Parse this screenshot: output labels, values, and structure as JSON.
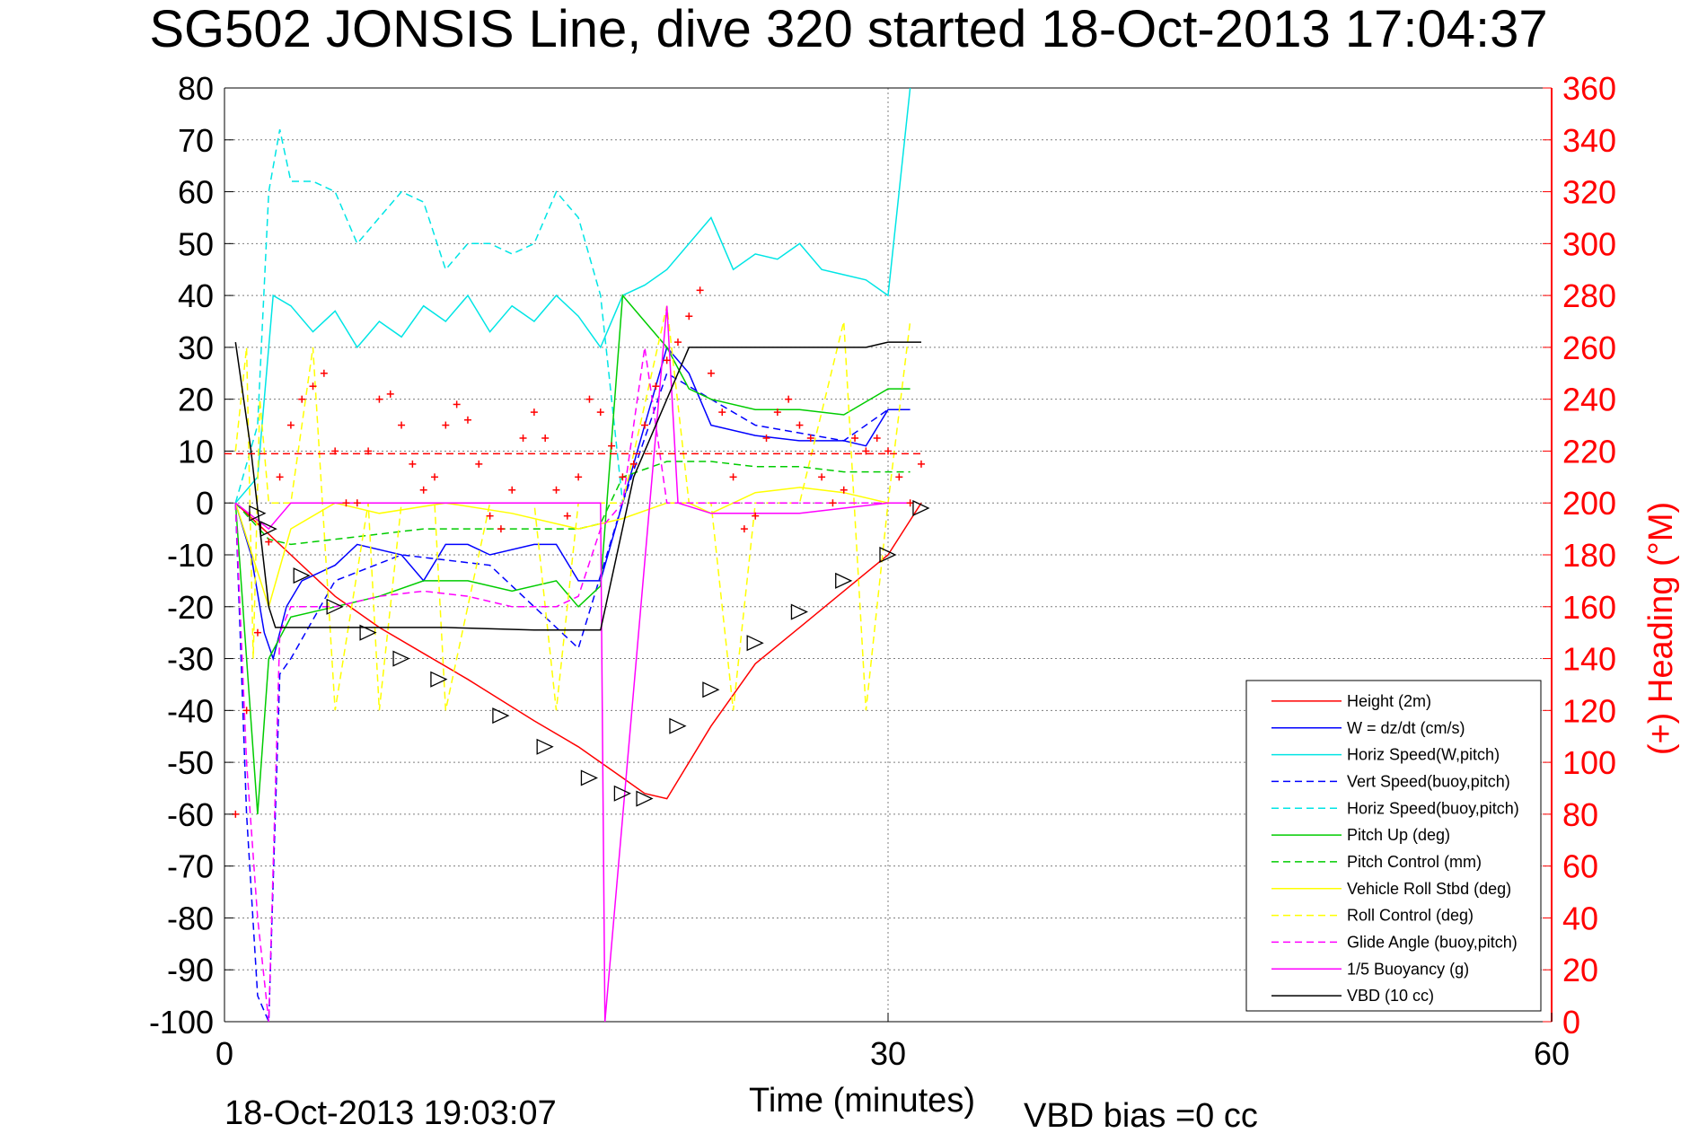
{
  "chart_data": {
    "type": "line",
    "title": "SG502 JONSIS Line, dive 320 started 18-Oct-2013 17:04:37",
    "xlabel": "Time (minutes)",
    "ylabel_right": "(+) Heading (°M)",
    "footer_left": "18-Oct-2013 19:03:07",
    "footer_right": "VBD bias =0 cc",
    "xlim": [
      0,
      60
    ],
    "ylim_left": [
      -100,
      80
    ],
    "ylim_right": [
      0,
      360
    ],
    "xticks": [
      0,
      30,
      60
    ],
    "yticks_left": [
      80,
      70,
      60,
      50,
      40,
      30,
      20,
      10,
      0,
      -10,
      -20,
      -30,
      -40,
      -50,
      -60,
      -70,
      -80,
      -90,
      -100
    ],
    "yticks_right": [
      360,
      340,
      320,
      300,
      280,
      260,
      240,
      220,
      200,
      180,
      160,
      140,
      120,
      100,
      80,
      60,
      40,
      20,
      0
    ],
    "grid": true,
    "legend_position": "bottom-right",
    "colors": {
      "axis": "#000000",
      "right_axis": "#ff0000",
      "grid": "#7f7f7f"
    },
    "series": [
      {
        "name": "Height (2m)",
        "color": "#ff0000",
        "dash": false,
        "x": [
          0.5,
          1.5,
          3,
          5,
          7,
          9,
          11,
          14,
          16,
          18,
          19,
          20,
          22,
          24,
          26,
          28,
          30,
          31.5
        ],
        "y": [
          0,
          -4,
          -10,
          -18,
          -24,
          -29,
          -34,
          -42,
          -47,
          -53,
          -56,
          -57,
          -43,
          -31,
          -24,
          -17,
          -10,
          0
        ]
      },
      {
        "name": "W = dz/dt (cm/s)",
        "color": "#0000ff",
        "dash": false,
        "x": [
          0.5,
          1.2,
          1.8,
          2.2,
          2.8,
          3.5,
          5,
          6,
          8,
          9,
          10,
          11,
          12,
          14,
          15,
          16,
          17,
          18,
          19,
          20,
          21,
          22,
          24,
          26,
          28,
          29,
          30,
          31
        ],
        "y": [
          0,
          -10,
          -25,
          -30,
          -20,
          -15,
          -12,
          -8,
          -10,
          -15,
          -8,
          -8,
          -10,
          -8,
          -8,
          -15,
          -15,
          0,
          15,
          30,
          25,
          15,
          13,
          12,
          12,
          11,
          18,
          18
        ]
      },
      {
        "name": "Horiz Speed(W,pitch)",
        "color": "#00e5e5",
        "dash": false,
        "x": [
          0.5,
          1.5,
          2.2,
          3,
          4,
          5,
          6,
          7,
          8,
          9,
          10,
          11,
          12,
          13,
          14,
          15,
          16,
          17,
          18,
          19,
          20,
          21,
          22,
          23,
          24,
          25,
          26,
          27,
          28,
          29,
          30,
          31
        ],
        "y": [
          0,
          5,
          40,
          38,
          33,
          37,
          30,
          35,
          32,
          38,
          35,
          40,
          33,
          38,
          35,
          40,
          36,
          30,
          40,
          42,
          45,
          50,
          55,
          45,
          48,
          47,
          50,
          45,
          44,
          43,
          40,
          80
        ]
      },
      {
        "name": "Vert Speed(buoy,pitch)",
        "color": "#0000ff",
        "dash": true,
        "x": [
          0.5,
          1.0,
          1.5,
          2.0,
          2.5,
          3,
          5,
          8,
          12,
          16,
          18,
          20,
          24,
          28,
          30,
          31
        ],
        "y": [
          0,
          -60,
          -95,
          -100,
          -33,
          -30,
          -15,
          -10,
          -12,
          -28,
          0,
          25,
          15,
          12,
          18,
          18
        ]
      },
      {
        "name": "Horiz Speed(buoy,pitch)",
        "color": "#00e5e5",
        "dash": true,
        "x": [
          0.5,
          1.5,
          2.0,
          2.5,
          3,
          4,
          5,
          6,
          7,
          8,
          9,
          10,
          11,
          12,
          13,
          14,
          15,
          16,
          17,
          18
        ],
        "y": [
          0,
          15,
          60,
          72,
          62,
          62,
          60,
          50,
          55,
          60,
          58,
          45,
          50,
          50,
          48,
          50,
          60,
          55,
          40,
          0
        ]
      },
      {
        "name": "Pitch Up (deg)",
        "color": "#00cc00",
        "dash": false,
        "x": [
          0.5,
          1.5,
          2,
          3,
          5,
          7,
          9,
          11,
          13,
          15,
          16,
          17,
          18,
          19,
          20,
          21,
          22,
          24,
          26,
          28,
          30,
          31
        ],
        "y": [
          0,
          -60,
          -30,
          -22,
          -20,
          -18,
          -15,
          -15,
          -17,
          -15,
          -20,
          -16,
          40,
          35,
          30,
          22,
          20,
          18,
          18,
          17,
          22,
          22
        ]
      },
      {
        "name": "Pitch Control (mm)",
        "color": "#00cc00",
        "dash": true,
        "x": [
          0.5,
          2,
          3,
          5,
          7,
          9,
          11,
          13,
          15,
          16,
          17,
          18,
          20,
          22,
          24,
          26,
          28,
          30,
          31
        ],
        "y": [
          0,
          -7,
          -8,
          -7,
          -6,
          -5,
          -5,
          -5,
          -5,
          -5,
          -4,
          5,
          8,
          8,
          7,
          7,
          6,
          6,
          6
        ]
      },
      {
        "name": "Vehicle Roll Stbd (deg)",
        "color": "#ffff00",
        "dash": false,
        "x": [
          0.5,
          2,
          3,
          5,
          7,
          10,
          13,
          16,
          18,
          20,
          21,
          22,
          24,
          26,
          28,
          30,
          31
        ],
        "y": [
          0,
          -20,
          -5,
          0,
          -2,
          0,
          -2,
          -5,
          -3,
          0,
          0,
          -2,
          2,
          3,
          2,
          0,
          0
        ]
      },
      {
        "name": "Roll Control (deg)",
        "color": "#ffff00",
        "dash": true,
        "x": [
          0.5,
          1,
          1.3,
          1.6,
          2,
          3,
          4,
          5,
          6.5,
          7,
          8,
          9.5,
          10,
          12,
          14,
          15,
          16,
          17,
          18,
          20,
          21,
          22,
          23,
          24,
          26,
          28,
          29,
          30,
          31
        ],
        "y": [
          10,
          30,
          -30,
          20,
          0,
          0,
          30,
          -40,
          0,
          -40,
          0,
          0,
          -40,
          0,
          0,
          -40,
          0,
          0,
          0,
          38,
          0,
          0,
          -40,
          0,
          0,
          35,
          -40,
          0,
          35
        ]
      },
      {
        "name": "Glide Angle (buoy,pitch)",
        "color": "#ff00ff",
        "dash": true,
        "x": [
          0.5,
          1.0,
          1.5,
          2.0,
          2.5,
          3,
          5,
          7,
          9,
          11,
          13,
          15,
          16,
          17,
          18,
          19,
          20,
          22,
          24,
          26,
          28,
          30,
          31
        ],
        "y": [
          0,
          -50,
          -80,
          -100,
          -25,
          -20,
          -20,
          -18,
          -17,
          -18,
          -20,
          -20,
          -18,
          -5,
          0,
          30,
          0,
          0,
          0,
          0,
          0,
          0,
          0
        ]
      },
      {
        "name": "1/5 Buoyancy (g)",
        "color": "#ff00ff",
        "dash": false,
        "x": [
          0.5,
          2,
          3,
          5,
          8,
          10,
          15,
          17,
          17.2,
          20,
          20.5,
          22,
          26,
          30,
          31
        ],
        "y": [
          0,
          -5,
          0,
          0,
          0,
          0,
          0,
          0,
          -100,
          38,
          0,
          -2,
          -2,
          0,
          0
        ]
      },
      {
        "name": "VBD (10 cc)",
        "color": "#000000",
        "dash": false,
        "x": [
          0.5,
          1.2,
          2.0,
          2.3,
          5,
          10,
          14,
          17,
          18.5,
          21,
          25,
          29,
          30,
          31.5
        ],
        "y": [
          31,
          10,
          -20,
          -24,
          -24,
          -24,
          -24.5,
          -24.5,
          5,
          30,
          30,
          30,
          31,
          31
        ]
      }
    ],
    "heading_series": {
      "name": "Heading",
      "color": "#ff0000",
      "marker": "+",
      "mean_heading": 219,
      "x": [
        0.5,
        1,
        1.5,
        2,
        2.5,
        3,
        3.5,
        4,
        4.5,
        5,
        5.5,
        6,
        6.5,
        7,
        7.5,
        8,
        8.5,
        9,
        9.5,
        10,
        10.5,
        11,
        11.5,
        12,
        12.5,
        13,
        13.5,
        14,
        14.5,
        15,
        15.5,
        16,
        16.5,
        17,
        17.5,
        18,
        18.5,
        19,
        19.5,
        20,
        20.5,
        21,
        21.5,
        22,
        22.5,
        23,
        23.5,
        24,
        24.5,
        25,
        25.5,
        26,
        26.5,
        27,
        27.5,
        28,
        28.5,
        29,
        29.5,
        30,
        30.5,
        31,
        31.5
      ],
      "y": [
        80,
        120,
        150,
        185,
        210,
        230,
        240,
        245,
        250,
        220,
        200,
        200,
        220,
        240,
        242,
        230,
        215,
        205,
        210,
        230,
        238,
        232,
        215,
        195,
        190,
        205,
        225,
        235,
        225,
        205,
        195,
        210,
        240,
        235,
        222,
        210,
        215,
        230,
        245,
        255,
        262,
        272,
        282,
        250,
        235,
        210,
        190,
        195,
        225,
        235,
        240,
        230,
        225,
        210,
        200,
        205,
        225,
        220,
        225,
        220,
        210,
        200,
        215
      ]
    },
    "height_markers": {
      "name": "Height markers",
      "color": "#000000",
      "marker": "triangle",
      "x": [
        1.5,
        2,
        3.5,
        5,
        6.5,
        8,
        9.7,
        12.5,
        14.5,
        16.5,
        18,
        19,
        20.5,
        22,
        24,
        26,
        28,
        30,
        31.5
      ],
      "y": [
        -2,
        -5,
        -14,
        -20,
        -25,
        -30,
        -34,
        -41,
        -47,
        -53,
        -56,
        -57,
        -43,
        -36,
        -27,
        -21,
        -15,
        -10,
        -1
      ]
    }
  },
  "legend": {
    "items": [
      {
        "label": "Height (2m)",
        "color": "#ff0000",
        "dash": false
      },
      {
        "label": "W = dz/dt (cm/s)",
        "color": "#0000ff",
        "dash": false
      },
      {
        "label": "Horiz Speed(W,pitch)",
        "color": "#00e5e5",
        "dash": false
      },
      {
        "label": "Vert Speed(buoy,pitch)",
        "color": "#0000ff",
        "dash": true
      },
      {
        "label": "Horiz Speed(buoy,pitch)",
        "color": "#00e5e5",
        "dash": true
      },
      {
        "label": "Pitch Up (deg)",
        "color": "#00cc00",
        "dash": false
      },
      {
        "label": "Pitch Control (mm)",
        "color": "#00cc00",
        "dash": true
      },
      {
        "label": "Vehicle Roll Stbd (deg)",
        "color": "#ffff00",
        "dash": false
      },
      {
        "label": "Roll Control (deg)",
        "color": "#ffff00",
        "dash": true
      },
      {
        "label": "Glide Angle (buoy,pitch)",
        "color": "#ff00ff",
        "dash": true
      },
      {
        "label": "1/5 Buoyancy (g)",
        "color": "#ff00ff",
        "dash": false
      },
      {
        "label": "VBD (10 cc)",
        "color": "#000000",
        "dash": false
      }
    ]
  }
}
